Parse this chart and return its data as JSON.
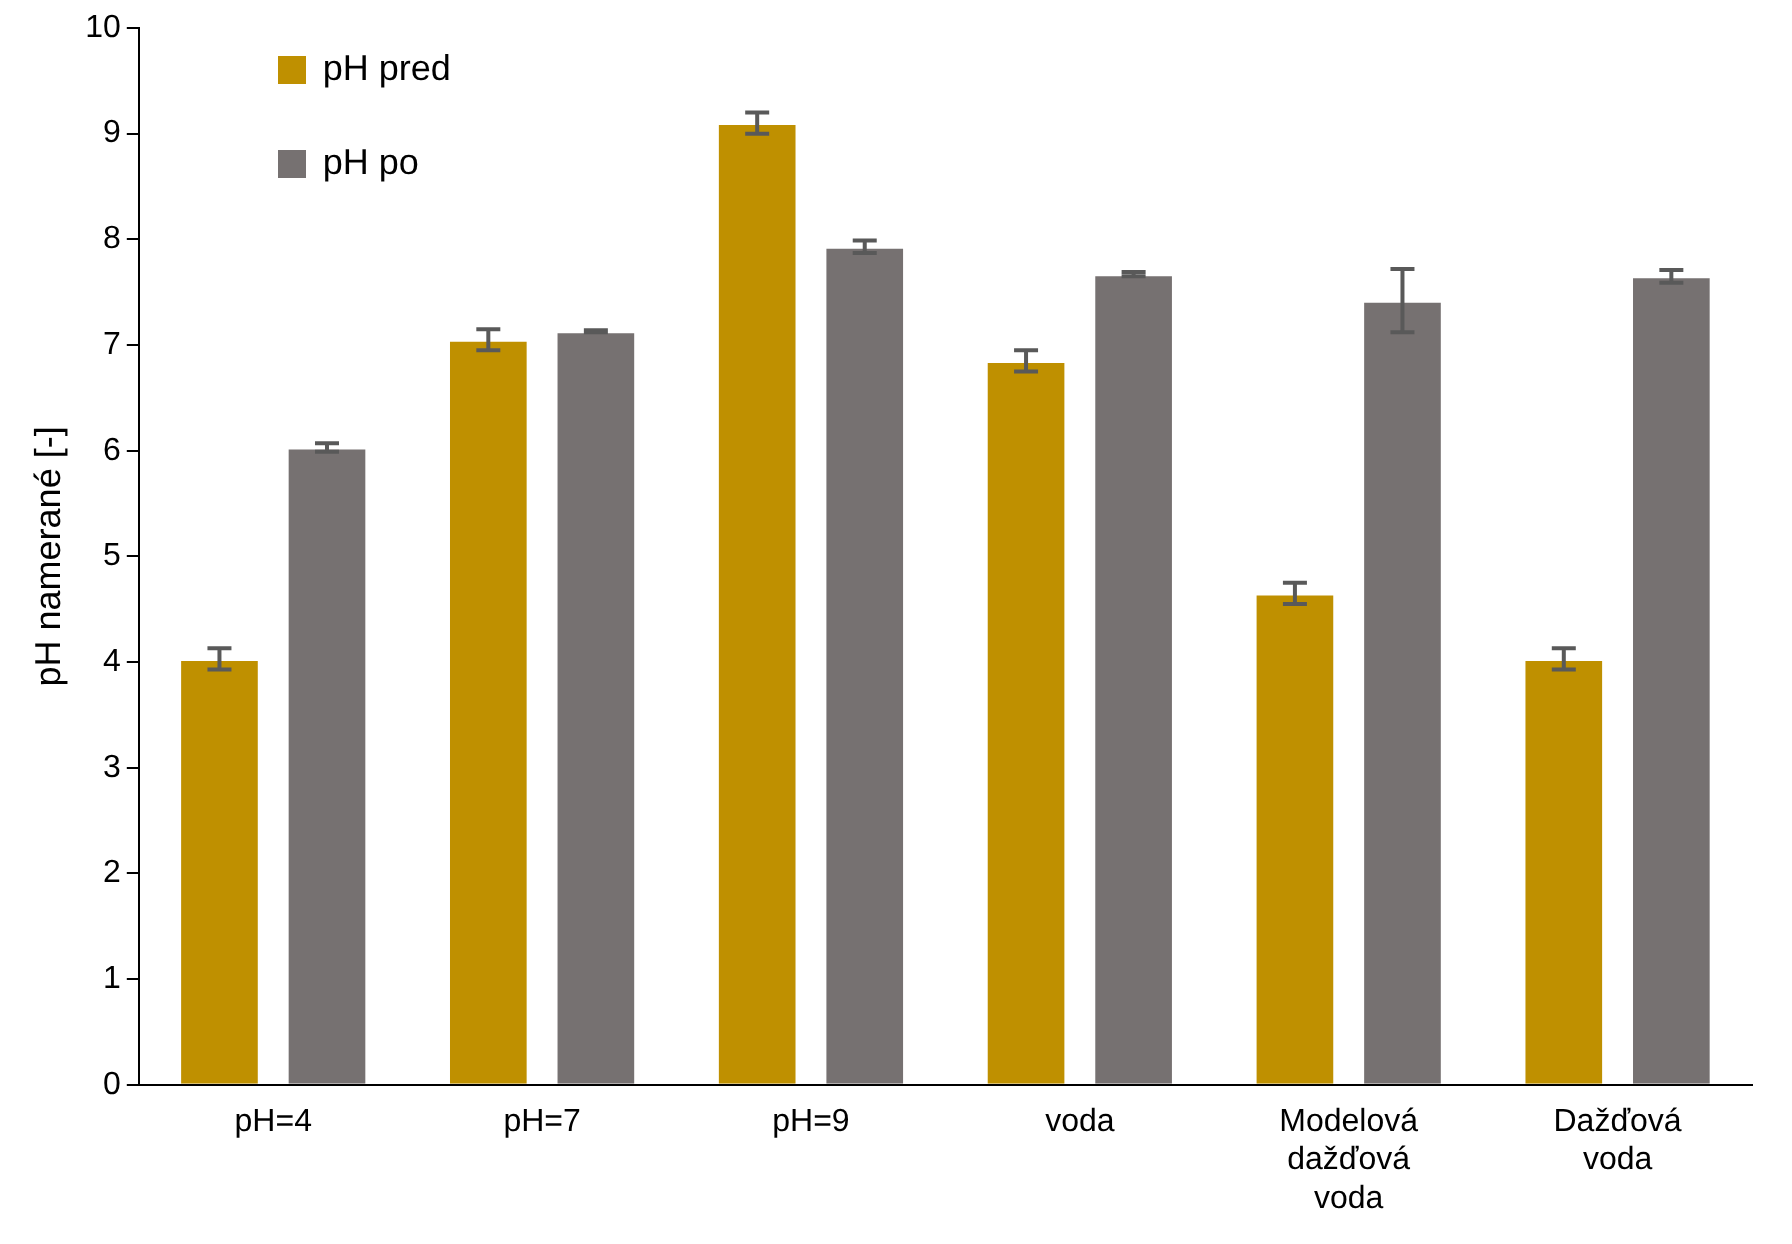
{
  "chart_data": {
    "type": "bar",
    "ylabel": "pH namerané [-]",
    "categories": [
      "pH=4",
      "pH=7",
      "pH=9",
      "voda",
      "Modelová dažďová voda",
      "Dažďová voda"
    ],
    "series": [
      {
        "name": "pH pred",
        "color": "#bf9000",
        "values": [
          4.03,
          7.05,
          9.1,
          6.85,
          4.65,
          4.03
        ],
        "errors": [
          0.1,
          0.1,
          0.1,
          0.1,
          0.1,
          0.1
        ]
      },
      {
        "name": "pH po",
        "color": "#767171",
        "values": [
          6.03,
          7.13,
          7.93,
          7.67,
          7.42,
          7.65
        ],
        "errors": [
          0.04,
          0.01,
          0.06,
          0.02,
          0.3,
          0.06
        ]
      }
    ],
    "ylim": [
      0,
      10
    ],
    "yticks": [
      0,
      1,
      2,
      3,
      4,
      5,
      6,
      7,
      8,
      9,
      10
    ],
    "grid": false,
    "legend": "top left"
  }
}
